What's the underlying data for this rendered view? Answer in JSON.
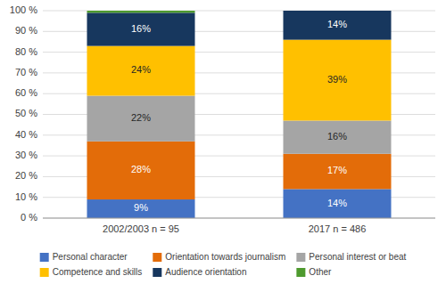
{
  "chart_data": {
    "type": "bar",
    "stacked": true,
    "grid": true,
    "legend": "bottom",
    "data_labels": true,
    "categories": [
      "2002/2003 n = 95",
      "2017 n = 486"
    ],
    "series": [
      {
        "name": "Personal character",
        "color": "#4472C4",
        "values": [
          9,
          14
        ],
        "value_labels": [
          "9%",
          "14%"
        ]
      },
      {
        "name": "Orientation towards journalism",
        "color": "#E36C09",
        "values": [
          28,
          17
        ],
        "value_labels": [
          "28%",
          "17%"
        ]
      },
      {
        "name": "Personal interest or beat",
        "color": "#A5A5A5",
        "values": [
          22,
          16
        ],
        "value_labels": [
          "22%",
          "16%"
        ]
      },
      {
        "name": "Competence and skills",
        "color": "#FFC000",
        "values": [
          24,
          39
        ],
        "value_labels": [
          "24%",
          "39%"
        ]
      },
      {
        "name": "Audience orientation",
        "color": "#17375E",
        "values": [
          16,
          14
        ],
        "value_labels": [
          "16%",
          "14%"
        ]
      },
      {
        "name": "Other",
        "color": "#4E9A2E",
        "values": [
          1,
          0
        ],
        "value_labels": [
          null,
          null
        ]
      }
    ],
    "ylim": [
      0,
      100
    ],
    "yticks": [
      {
        "value": 0,
        "label": "0 %"
      },
      {
        "value": 10,
        "label": "10 %"
      },
      {
        "value": 20,
        "label": "20 %"
      },
      {
        "value": 30,
        "label": "30 %"
      },
      {
        "value": 40,
        "label": "40 %"
      },
      {
        "value": 50,
        "label": "50 %"
      },
      {
        "value": 60,
        "label": "60 %"
      },
      {
        "value": 70,
        "label": "70 %"
      },
      {
        "value": 80,
        "label": "80 %"
      },
      {
        "value": 90,
        "label": "90 %"
      },
      {
        "value": 100,
        "label": "100 %"
      }
    ]
  }
}
